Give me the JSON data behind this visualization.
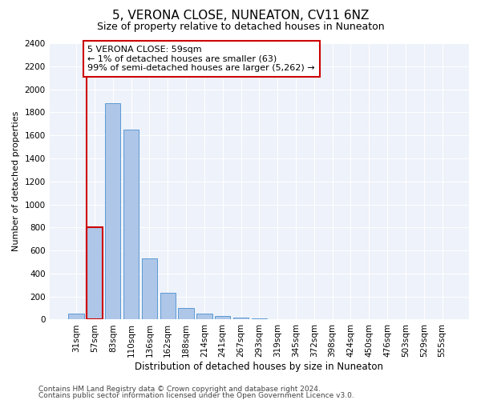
{
  "title1": "5, VERONA CLOSE, NUNEATON, CV11 6NZ",
  "title2": "Size of property relative to detached houses in Nuneaton",
  "xlabel": "Distribution of detached houses by size in Nuneaton",
  "ylabel": "Number of detached properties",
  "categories": [
    "31sqm",
    "57sqm",
    "83sqm",
    "110sqm",
    "136sqm",
    "162sqm",
    "188sqm",
    "214sqm",
    "241sqm",
    "267sqm",
    "293sqm",
    "319sqm",
    "345sqm",
    "372sqm",
    "398sqm",
    "424sqm",
    "450sqm",
    "476sqm",
    "503sqm",
    "529sqm",
    "555sqm"
  ],
  "values": [
    50,
    800,
    1880,
    1650,
    530,
    230,
    100,
    50,
    30,
    20,
    10,
    5,
    2,
    1,
    0,
    0,
    0,
    0,
    0,
    0,
    0
  ],
  "bar_color": "#aec6e8",
  "bar_edge_color": "#5b9bd5",
  "highlight_bar_index": 1,
  "highlight_edge_color": "#cc0000",
  "vline_color": "#cc0000",
  "annotation_text": "5 VERONA CLOSE: 59sqm\n← 1% of detached houses are smaller (63)\n99% of semi-detached houses are larger (5,262) →",
  "annotation_box_color": "#ffffff",
  "annotation_box_edge_color": "#cc0000",
  "ylim": [
    0,
    2400
  ],
  "yticks": [
    0,
    200,
    400,
    600,
    800,
    1000,
    1200,
    1400,
    1600,
    1800,
    2000,
    2200,
    2400
  ],
  "footer1": "Contains HM Land Registry data © Crown copyright and database right 2024.",
  "footer2": "Contains public sector information licensed under the Open Government Licence v3.0.",
  "plot_bg_color": "#eef2fa",
  "fig_bg_color": "#ffffff",
  "grid_color": "#ffffff",
  "title1_fontsize": 11,
  "title2_fontsize": 9,
  "xlabel_fontsize": 8.5,
  "ylabel_fontsize": 8,
  "annotation_fontsize": 8,
  "tick_fontsize": 7.5,
  "footer_fontsize": 6.5
}
